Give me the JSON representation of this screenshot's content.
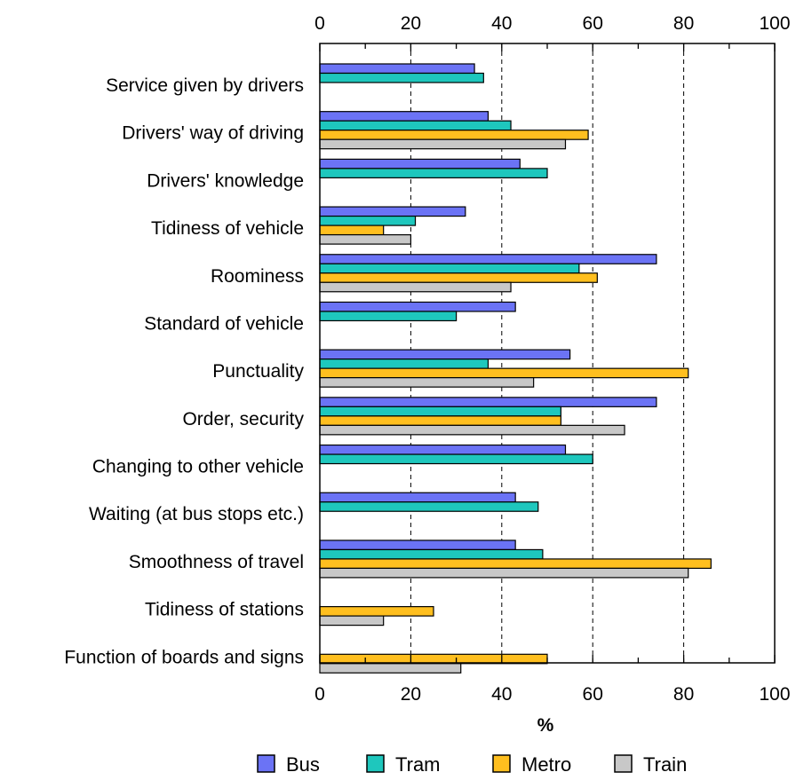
{
  "chart_data": {
    "type": "bar",
    "orientation": "horizontal",
    "title": "",
    "xlabel": "%",
    "ylabel": "",
    "xlim": [
      0,
      100
    ],
    "xticks": [
      "0",
      "20",
      "40",
      "60",
      "80",
      "100"
    ],
    "grid": "vertical dashed at 20, 40, 60, 80",
    "legend_position": "bottom",
    "categories": [
      "Service given by drivers",
      "Drivers' way of driving",
      "Drivers' knowledge",
      "Tidiness of vehicle",
      "Roominess",
      "Standard of vehicle",
      "Punctuality",
      "Order, security",
      "Changing to other vehicle",
      "Waiting (at bus stops etc.)",
      "Smoothness of travel",
      "Tidiness of stations",
      "Function of boards and signs"
    ],
    "series": [
      {
        "name": "Bus",
        "color": "#6b73f5",
        "values": [
          34,
          37,
          44,
          32,
          74,
          43,
          55,
          74,
          54,
          43,
          43,
          null,
          null
        ]
      },
      {
        "name": "Tram",
        "color": "#1ec7bd",
        "values": [
          36,
          42,
          50,
          21,
          57,
          30,
          37,
          53,
          60,
          48,
          49,
          null,
          null
        ]
      },
      {
        "name": "Metro",
        "color": "#ffbf1f",
        "values": [
          null,
          59,
          null,
          14,
          61,
          null,
          81,
          53,
          null,
          null,
          86,
          25,
          50
        ]
      },
      {
        "name": "Train",
        "color": "#c8c8c8",
        "values": [
          null,
          54,
          null,
          20,
          42,
          null,
          47,
          67,
          null,
          null,
          81,
          14,
          31
        ]
      }
    ]
  }
}
